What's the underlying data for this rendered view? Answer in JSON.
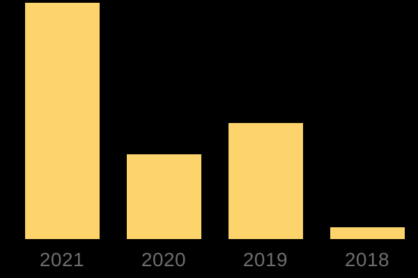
{
  "chart_data": {
    "type": "bar",
    "title": "",
    "xlabel": "",
    "ylabel": "",
    "categories": [
      "2021",
      "2020",
      "2019",
      "2018"
    ],
    "values": [
      100,
      36,
      49,
      5
    ],
    "ylim": [
      0,
      100
    ],
    "grid": false,
    "legend": "none",
    "axis_lines": "none",
    "colors": {
      "bar_fill": "#FCD46B",
      "tick_label": "#6E6E6E",
      "background": "#000000"
    }
  }
}
